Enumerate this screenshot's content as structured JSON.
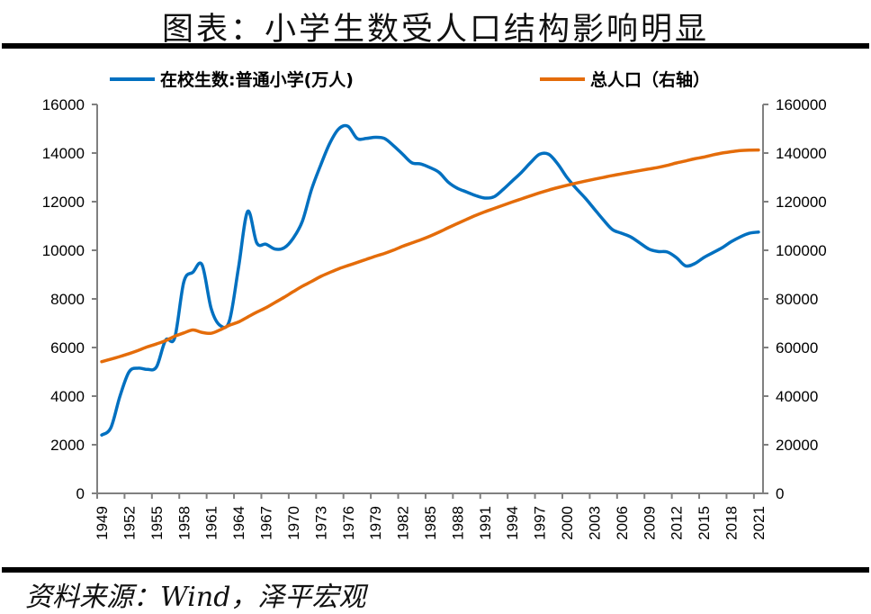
{
  "title": "图表：小学生数受人口结构影响明显",
  "source": "资料来源：Wind，泽平宏观",
  "chart_data": {
    "type": "line",
    "title": "图表：小学生数受人口结构影响明显",
    "x": [
      1949,
      1950,
      1951,
      1952,
      1953,
      1954,
      1955,
      1956,
      1957,
      1958,
      1959,
      1960,
      1961,
      1962,
      1963,
      1964,
      1965,
      1966,
      1967,
      1968,
      1969,
      1970,
      1971,
      1972,
      1973,
      1974,
      1975,
      1976,
      1977,
      1978,
      1979,
      1980,
      1981,
      1982,
      1983,
      1984,
      1985,
      1986,
      1987,
      1988,
      1989,
      1990,
      1991,
      1992,
      1993,
      1994,
      1995,
      1996,
      1997,
      1998,
      1999,
      2000,
      2001,
      2002,
      2003,
      2004,
      2005,
      2006,
      2007,
      2008,
      2009,
      2010,
      2011,
      2012,
      2013,
      2014,
      2015,
      2016,
      2017,
      2018,
      2019,
      2020,
      2021
    ],
    "x_tick_labels": [
      "1949",
      "1952",
      "1955",
      "1958",
      "1961",
      "1964",
      "1967",
      "1970",
      "1973",
      "1976",
      "1979",
      "1982",
      "1985",
      "1988",
      "1991",
      "1994",
      "1997",
      "2000",
      "2003",
      "2006",
      "2009",
      "2012",
      "2015",
      "2018",
      "2021"
    ],
    "y_left": {
      "lim": [
        0,
        16000
      ],
      "ticks": [
        "0",
        "2000",
        "4000",
        "6000",
        "8000",
        "10000",
        "12000",
        "14000",
        "16000"
      ]
    },
    "y_right": {
      "lim": [
        0,
        160000
      ],
      "ticks": [
        "0",
        "20000",
        "40000",
        "60000",
        "80000",
        "100000",
        "120000",
        "140000",
        "160000"
      ]
    },
    "grid": false,
    "legend_position": "top",
    "series": [
      {
        "name": "在校生数:普通小学(万人)",
        "axis": "left",
        "color": "#0070C0",
        "values": [
          2400,
          2700,
          4000,
          5000,
          5150,
          5100,
          5200,
          6300,
          6400,
          8700,
          9100,
          9400,
          7600,
          6900,
          7100,
          9300,
          11600,
          10300,
          10250,
          10050,
          10100,
          10500,
          11200,
          12500,
          13500,
          14400,
          15000,
          15100,
          14600,
          14600,
          14650,
          14600,
          14300,
          13950,
          13600,
          13550,
          13400,
          13200,
          12800,
          12550,
          12400,
          12250,
          12150,
          12200,
          12500,
          12850,
          13200,
          13600,
          13950,
          13950,
          13550,
          13000,
          12550,
          12150,
          11700,
          11250,
          10850,
          10700,
          10550,
          10300,
          10050,
          9950,
          9930,
          9700,
          9360,
          9450,
          9700,
          9900,
          10100,
          10350,
          10550,
          10700,
          10750
        ]
      },
      {
        "name": "总人口（右轴）",
        "axis": "right",
        "color": "#E46C0A",
        "values": [
          54167,
          55196,
          56300,
          57482,
          58796,
          60266,
          61465,
          62828,
          64653,
          65994,
          67207,
          66207,
          65859,
          67295,
          69172,
          70499,
          72538,
          74542,
          76368,
          78534,
          80671,
          82992,
          85229,
          87177,
          89211,
          90859,
          92420,
          93717,
          94974,
          96259,
          97542,
          98705,
          100072,
          101654,
          103008,
          104357,
          105851,
          107507,
          109300,
          111026,
          112704,
          114333,
          115823,
          117171,
          118517,
          119850,
          121121,
          122389,
          123626,
          124761,
          125786,
          126743,
          127627,
          128453,
          129227,
          129988,
          130756,
          131448,
          132129,
          132802,
          133450,
          134091,
          134916,
          135922,
          136726,
          137646,
          138326,
          139232,
          140011,
          140541,
          141008,
          141212,
          141260
        ]
      }
    ]
  }
}
